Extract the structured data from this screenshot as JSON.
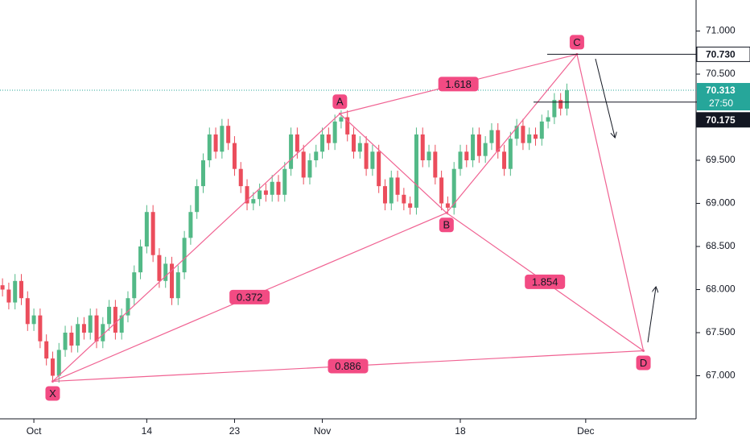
{
  "chart_data": {
    "type": "candlestick",
    "up_color": "#53b987",
    "down_color": "#eb4d5c",
    "pattern_color": "#f06292",
    "xlim": [
      -2.7,
      52.8
    ],
    "xticks": [
      {
        "value": 0,
        "label": "Oct"
      },
      {
        "value": 9,
        "label": "14"
      },
      {
        "value": 16,
        "label": "23"
      },
      {
        "value": 23,
        "label": "Nov"
      },
      {
        "value": 34,
        "label": "18"
      },
      {
        "value": 44,
        "label": "Dec"
      }
    ],
    "ylim": [
      66.5,
      71.36
    ],
    "yticks": [
      {
        "value": 71,
        "label": "71.000"
      },
      {
        "value": 70.5,
        "label": "70.500"
      },
      {
        "value": 69.5,
        "label": "69.500"
      },
      {
        "value": 69,
        "label": "69.000"
      },
      {
        "value": 68.5,
        "label": "68.500"
      },
      {
        "value": 68,
        "label": "68.000"
      },
      {
        "value": 67.5,
        "label": "67.500"
      },
      {
        "value": 67,
        "label": "67.000"
      }
    ],
    "x": [
      -2.5,
      -2,
      -1.5,
      -1,
      -0.5,
      0,
      0.5,
      1,
      1.5,
      2,
      2.5,
      3,
      3.5,
      4,
      4.5,
      5,
      5.5,
      6,
      6.5,
      7,
      7.5,
      8,
      8.5,
      9,
      9.5,
      10,
      10.5,
      11,
      11.5,
      12,
      12.5,
      13,
      13.5,
      14,
      14.5,
      15,
      15.5,
      16,
      16.5,
      17,
      17.5,
      18,
      18.5,
      19,
      19.5,
      20,
      20.5,
      21,
      21.5,
      22,
      22.5,
      23,
      23.5,
      24,
      24.5,
      25,
      25.5,
      26,
      26.5,
      27,
      27.5,
      28,
      28.5,
      29,
      29.5,
      30,
      30.5,
      31,
      31.5,
      32,
      32.5,
      33,
      33.5,
      34,
      34.5,
      35,
      35.5,
      36,
      36.5,
      37,
      37.5,
      38,
      38.5,
      39,
      39.5,
      40,
      40.5,
      41,
      41.5,
      42,
      42.5
    ],
    "open": [
      68.05,
      68.0,
      67.85,
      68.1,
      67.9,
      67.6,
      67.7,
      67.4,
      67.2,
      67.0,
      67.3,
      67.5,
      67.35,
      67.6,
      67.5,
      67.7,
      67.4,
      67.6,
      67.8,
      67.5,
      67.7,
      67.9,
      68.2,
      68.5,
      68.9,
      68.4,
      68.1,
      68.3,
      67.9,
      68.2,
      68.6,
      68.9,
      69.2,
      69.5,
      69.8,
      69.6,
      69.9,
      69.7,
      69.4,
      69.2,
      69.0,
      69.05,
      69.15,
      69.1,
      69.25,
      69.1,
      69.4,
      69.8,
      69.6,
      69.3,
      69.5,
      69.6,
      69.8,
      69.7,
      69.95,
      70.0,
      69.8,
      69.6,
      69.7,
      69.4,
      69.6,
      69.2,
      69.0,
      69.3,
      69.1,
      69.0,
      68.95,
      69.8,
      69.5,
      69.6,
      69.3,
      69.0,
      68.95,
      69.4,
      69.6,
      69.5,
      69.8,
      69.55,
      69.7,
      69.85,
      69.6,
      69.4,
      69.75,
      69.9,
      69.7,
      69.8,
      69.75,
      69.95,
      70.0,
      70.2,
      70.1
    ],
    "high": [
      68.13,
      68.08,
      68.18,
      68.18,
      67.98,
      67.78,
      67.78,
      67.48,
      67.28,
      67.38,
      67.58,
      67.58,
      67.68,
      67.68,
      67.78,
      67.78,
      67.68,
      67.88,
      67.88,
      67.78,
      67.98,
      68.28,
      68.58,
      68.98,
      68.98,
      68.48,
      68.38,
      68.38,
      68.28,
      68.68,
      68.98,
      69.28,
      69.58,
      69.88,
      69.88,
      69.98,
      69.98,
      69.78,
      69.48,
      69.28,
      69.13,
      69.23,
      69.23,
      69.33,
      69.33,
      69.48,
      69.88,
      69.88,
      69.68,
      69.58,
      69.68,
      69.88,
      69.88,
      70.03,
      70.08,
      70.08,
      69.88,
      69.78,
      69.78,
      69.68,
      69.68,
      69.28,
      69.38,
      69.38,
      69.18,
      69.08,
      69.88,
      69.88,
      69.68,
      69.68,
      69.38,
      69.08,
      69.48,
      69.68,
      69.68,
      69.88,
      69.88,
      69.78,
      69.93,
      69.93,
      69.68,
      69.83,
      69.98,
      69.98,
      69.88,
      69.88,
      70.03,
      70.08,
      70.28,
      70.28,
      70.39
    ],
    "low": [
      67.92,
      67.77,
      67.77,
      67.82,
      67.52,
      67.52,
      67.32,
      67.12,
      66.92,
      66.92,
      67.22,
      67.27,
      67.27,
      67.42,
      67.42,
      67.32,
      67.32,
      67.52,
      67.42,
      67.42,
      67.62,
      67.82,
      68.12,
      68.42,
      68.32,
      68.02,
      68.02,
      67.82,
      67.82,
      68.12,
      68.52,
      68.82,
      69.12,
      69.42,
      69.52,
      69.52,
      69.62,
      69.32,
      69.12,
      68.92,
      68.92,
      68.97,
      69.02,
      69.02,
      69.02,
      69.02,
      69.32,
      69.52,
      69.22,
      69.22,
      69.42,
      69.52,
      69.62,
      69.62,
      69.87,
      69.72,
      69.52,
      69.52,
      69.32,
      69.32,
      69.12,
      68.92,
      68.92,
      69.02,
      68.92,
      68.87,
      68.87,
      69.42,
      69.42,
      69.22,
      68.92,
      68.87,
      68.87,
      69.32,
      69.42,
      69.42,
      69.47,
      69.47,
      69.62,
      69.52,
      69.32,
      69.32,
      69.67,
      69.62,
      69.62,
      69.67,
      69.67,
      69.87,
      69.92,
      70.02,
      70.02
    ],
    "close": [
      68.0,
      67.85,
      68.1,
      67.9,
      67.6,
      67.7,
      67.4,
      67.2,
      67.0,
      67.3,
      67.5,
      67.35,
      67.6,
      67.5,
      67.7,
      67.4,
      67.6,
      67.8,
      67.5,
      67.7,
      67.9,
      68.2,
      68.5,
      68.9,
      68.4,
      68.1,
      68.3,
      67.9,
      68.2,
      68.6,
      68.9,
      69.2,
      69.5,
      69.8,
      69.6,
      69.9,
      69.7,
      69.4,
      69.2,
      69.0,
      69.05,
      69.15,
      69.1,
      69.25,
      69.1,
      69.4,
      69.8,
      69.6,
      69.3,
      69.5,
      69.6,
      69.8,
      69.7,
      69.95,
      70.0,
      69.8,
      69.6,
      69.7,
      69.4,
      69.6,
      69.2,
      69.0,
      69.3,
      69.1,
      69.0,
      68.95,
      69.8,
      69.5,
      69.6,
      69.3,
      69.0,
      68.95,
      69.4,
      69.6,
      69.5,
      69.8,
      69.55,
      69.7,
      69.85,
      69.6,
      69.4,
      69.75,
      69.9,
      69.7,
      69.8,
      69.75,
      69.95,
      70.0,
      70.2,
      70.1,
      70.313
    ],
    "pattern_points": [
      {
        "label": "X",
        "x": 1.5,
        "y": 66.935
      },
      {
        "label": "A",
        "x": 24.4,
        "y": 70.04
      },
      {
        "label": "B",
        "x": 32.9,
        "y": 68.89
      },
      {
        "label": "C",
        "x": 43.3,
        "y": 70.73
      },
      {
        "label": "D",
        "x": 48.6,
        "y": 67.29
      }
    ],
    "ratios": [
      {
        "label": "1.618",
        "from": 1,
        "to": 3
      },
      {
        "label": "0.372",
        "from": 0,
        "to": 2
      },
      {
        "label": "1.854",
        "from": 2,
        "to": 4
      },
      {
        "label": "0.886",
        "from": 0,
        "to": 4
      }
    ],
    "price_levels": [
      {
        "value": 70.73,
        "label": "70.730"
      },
      {
        "value": 70.175,
        "label": "70.175"
      }
    ],
    "current_price": {
      "value": 70.313,
      "label": "70.313"
    },
    "countdown": "27:50"
  }
}
